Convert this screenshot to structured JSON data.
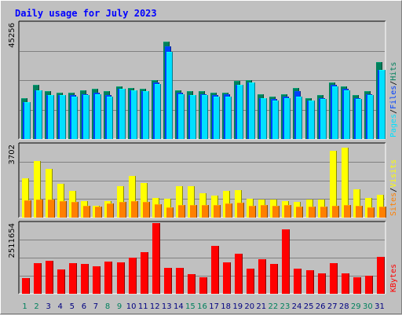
{
  "colors": {
    "background": "#c0c0c0",
    "panel": "#c0c0c0",
    "hits": "#00805c",
    "files": "#0040ff",
    "pages": "#00e0ff",
    "visits": "#ffff00",
    "sites": "#ff8000",
    "kbytes": "#ff0000",
    "title": "#0000ff",
    "weekday": "#000080",
    "weekend": "#00805c"
  },
  "chart_data": {
    "type": "bar",
    "title": "Daily usage for July 2023",
    "categories": [
      "1",
      "2",
      "3",
      "4",
      "5",
      "6",
      "7",
      "8",
      "9",
      "10",
      "11",
      "12",
      "13",
      "14",
      "15",
      "16",
      "17",
      "18",
      "19",
      "20",
      "21",
      "22",
      "23",
      "24",
      "25",
      "26",
      "27",
      "28",
      "29",
      "30",
      "31"
    ],
    "weekend_days": [
      "1",
      "2",
      "8",
      "9",
      "15",
      "16",
      "22",
      "23",
      "29",
      "30"
    ],
    "panels": [
      {
        "id": "top",
        "max_label": "45256",
        "ylim": [
          0,
          45256
        ],
        "legend": [
          "Pages",
          "Files",
          "Hits"
        ],
        "legend_separator": "/",
        "series": [
          {
            "name": "Hits",
            "color_key": "hits",
            "values": [
              16000,
              21000,
              18500,
              18000,
              18000,
              19000,
              19500,
              18500,
              20500,
              20000,
              19500,
              23000,
              38000,
              19000,
              18500,
              18500,
              18000,
              18000,
              22500,
              23000,
              17500,
              16500,
              17500,
              20000,
              16000,
              17000,
              22000,
              20500,
              17000,
              18500,
              30000
            ]
          },
          {
            "name": "Files",
            "color_key": "files",
            "values": [
              14500,
              19000,
              17000,
              17000,
              17000,
              17500,
              18000,
              17000,
              19500,
              19000,
              18500,
              22000,
              36000,
              18000,
              17000,
              17500,
              17000,
              17500,
              21000,
              22000,
              16000,
              15500,
              16500,
              18500,
              15000,
              16000,
              21000,
              19500,
              16000,
              17500,
              27000
            ]
          },
          {
            "name": "Pages",
            "color_key": "pages",
            "values": [
              14500,
              19000,
              17000,
              17000,
              16500,
              17000,
              17500,
              16500,
              19500,
              19000,
              18500,
              21500,
              34000,
              17500,
              17000,
              17000,
              16500,
              16500,
              21000,
              22000,
              16000,
              15000,
              16000,
              16500,
              15000,
              15500,
              20500,
              19000,
              15500,
              17000,
              27000
            ]
          }
        ]
      },
      {
        "id": "middle",
        "max_label": "3702",
        "ylim": [
          0,
          3702
        ],
        "legend": [
          "Sites",
          "Visits"
        ],
        "legend_separator": "/",
        "series": [
          {
            "name": "Visits",
            "color_key": "visits",
            "values": [
              2000,
              2850,
              2450,
              1700,
              1350,
              850,
              600,
              850,
              1600,
              2100,
              1750,
              1000,
              950,
              1600,
              1600,
              1250,
              1100,
              1350,
              1400,
              950,
              900,
              900,
              850,
              800,
              900,
              900,
              3400,
              3550,
              1450,
              1000,
              1150
            ]
          },
          {
            "name": "Sites",
            "color_key": "sites",
            "values": [
              880,
              920,
              920,
              850,
              800,
              580,
              570,
              730,
              780,
              830,
              800,
              680,
              500,
              650,
              650,
              650,
              650,
              700,
              770,
              600,
              650,
              580,
              620,
              550,
              550,
              550,
              580,
              620,
              580,
              500,
              550
            ]
          }
        ]
      },
      {
        "id": "bottom",
        "max_label": "2511654",
        "ylim": [
          0,
          2511654
        ],
        "legend": [
          "KBytes"
        ],
        "legend_separator": "/",
        "series": [
          {
            "name": "KBytes",
            "color_key": "kbytes",
            "values": [
              550000,
              1080000,
              1170000,
              860000,
              1090000,
              1050000,
              970000,
              1150000,
              1110000,
              1270000,
              1490000,
              2511654,
              910000,
              930000,
              690000,
              580000,
              1710000,
              1110000,
              1410000,
              890000,
              1240000,
              1050000,
              2280000,
              880000,
              830000,
              720000,
              1080000,
              730000,
              600000,
              650000,
              1300000
            ]
          }
        ]
      }
    ]
  }
}
